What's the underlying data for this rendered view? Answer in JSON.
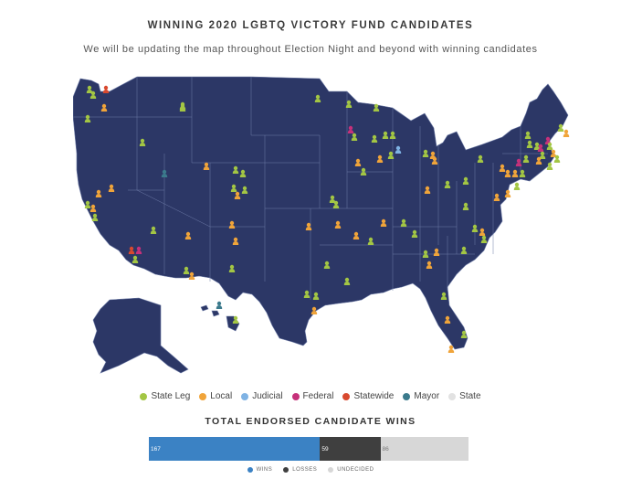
{
  "header": {
    "title": "WINNING 2020 LGBTQ VICTORY FUND CANDIDATES",
    "subtitle": "We will be updating the map throughout Election Night and beyond with winning candidates"
  },
  "map": {
    "land_color": "#2c3766",
    "border_color": "#6c7aa6"
  },
  "legend": [
    {
      "label": "State Leg",
      "color": "#a3c644"
    },
    {
      "label": "Local",
      "color": "#f0a43a"
    },
    {
      "label": "Judicial",
      "color": "#7fb3e4"
    },
    {
      "label": "Federal",
      "color": "#c6317a"
    },
    {
      "label": "Statewide",
      "color": "#d8492f"
    },
    {
      "label": "Mayor",
      "color": "#3b7a8c"
    },
    {
      "label": "State",
      "color": "#e2e2e2"
    }
  ],
  "totals": {
    "title": "TOTAL ENDORSED CANDIDATE WINS",
    "segments": [
      {
        "key": "wins",
        "value": 167,
        "label": "WINS",
        "color": "#3b82c4"
      },
      {
        "key": "losses",
        "value": 59,
        "label": "LOSSES",
        "color": "#3f3f3f"
      },
      {
        "key": "undecided",
        "value": 86,
        "label": "UNDECIDED",
        "color": "#d7d7d7"
      }
    ]
  }
}
